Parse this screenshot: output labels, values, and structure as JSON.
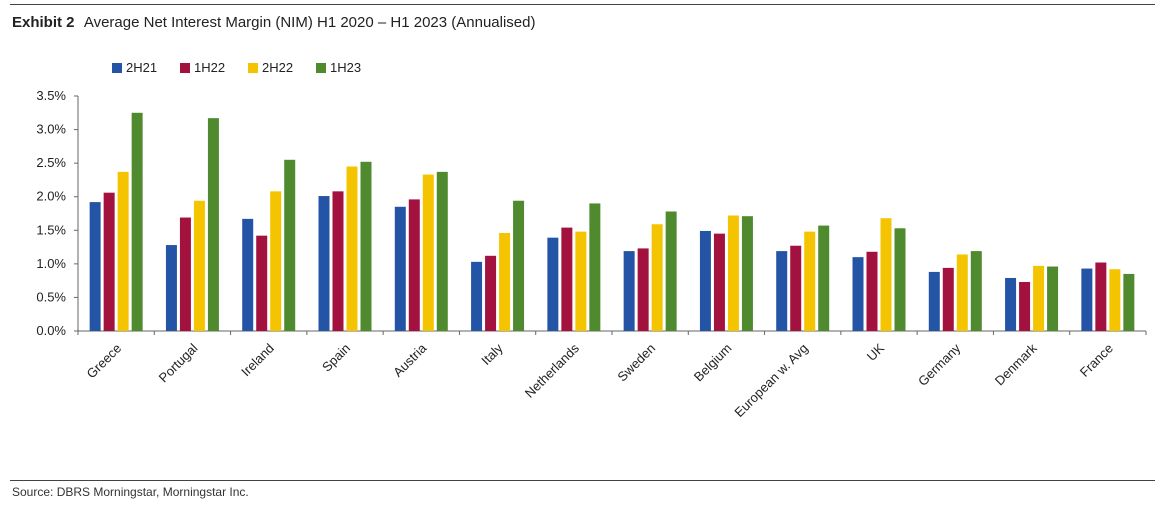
{
  "header": {
    "label": "Exhibit 2",
    "title": "Average Net Interest Margin (NIM) H1 2020 – H1 2023 (Annualised)"
  },
  "source": "Source: DBRS Morningstar, Morningstar Inc.",
  "chart_data": {
    "type": "bar",
    "title": "Average Net Interest Margin (NIM) H1 2020 – H1 2023 (Annualised)",
    "xlabel": "",
    "ylabel": "",
    "ylim": [
      0,
      3.5
    ],
    "yticks": [
      "0.0%",
      "0.5%",
      "1.0%",
      "1.5%",
      "2.0%",
      "2.5%",
      "3.0%",
      "3.5%"
    ],
    "grid": false,
    "legend": "top-left",
    "categories": [
      "Greece",
      "Portugal",
      "Ireland",
      "Spain",
      "Austria",
      "Italy",
      "Netherlands",
      "Sweden",
      "Belgium",
      "European w. Avg",
      "UK",
      "Germany",
      "Denmark",
      "France"
    ],
    "series": [
      {
        "name": "2H21",
        "color": "#2454a6",
        "values": [
          1.92,
          1.28,
          1.67,
          2.01,
          1.85,
          1.03,
          1.39,
          1.19,
          1.49,
          1.19,
          1.1,
          0.88,
          0.79,
          0.93
        ]
      },
      {
        "name": "1H22",
        "color": "#a3123e",
        "values": [
          2.06,
          1.69,
          1.42,
          2.08,
          1.96,
          1.12,
          1.54,
          1.23,
          1.45,
          1.27,
          1.18,
          0.94,
          0.73,
          1.02
        ]
      },
      {
        "name": "2H22",
        "color": "#f5c400",
        "values": [
          2.37,
          1.94,
          2.08,
          2.45,
          2.33,
          1.46,
          1.48,
          1.59,
          1.72,
          1.48,
          1.68,
          1.14,
          0.97,
          0.92
        ]
      },
      {
        "name": "1H23",
        "color": "#4f8a2f",
        "values": [
          3.25,
          3.17,
          2.55,
          2.52,
          2.37,
          1.94,
          1.9,
          1.78,
          1.71,
          1.57,
          1.53,
          1.19,
          0.96,
          0.85
        ]
      }
    ]
  }
}
